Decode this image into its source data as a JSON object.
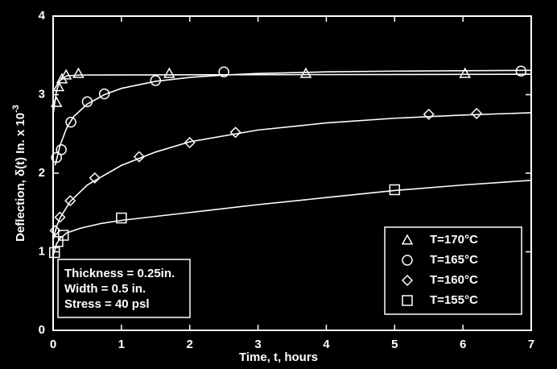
{
  "chart_data": {
    "type": "scatter",
    "x_label": "Time, t, hours",
    "y_label": "Deflection, δ(t) In. x 10",
    "y_label_sup": "-3",
    "xlim": [
      0,
      7
    ],
    "ylim": [
      0,
      4
    ],
    "xticks": [
      0,
      1,
      2,
      3,
      4,
      5,
      6,
      7
    ],
    "yticks": [
      0,
      1,
      2,
      3,
      4
    ],
    "legend": "lower right",
    "background": "#000000",
    "color": "#ffffff",
    "series": [
      {
        "name": "T=170°C",
        "marker": "triangle",
        "color": "#ffffff",
        "x": [
          0.05,
          0.08,
          0.13,
          0.19,
          0.37,
          1.7,
          3.7,
          6.03
        ],
        "values": [
          2.9,
          3.1,
          3.2,
          3.25,
          3.27,
          3.27,
          3.27,
          3.27
        ],
        "fit": {
          "x": [
            0,
            0.05,
            0.1,
            0.2,
            0.4,
            7
          ],
          "values": [
            2.75,
            3.05,
            3.18,
            3.24,
            3.25,
            3.26
          ]
        }
      },
      {
        "name": "T=165°C",
        "marker": "circle",
        "color": "#ffffff",
        "x": [
          0.05,
          0.12,
          0.26,
          0.5,
          0.75,
          1.5,
          2.5,
          6.85
        ],
        "values": [
          2.2,
          2.3,
          2.65,
          2.91,
          3.01,
          3.18,
          3.29,
          3.3
        ],
        "fit": {
          "x": [
            0.03,
            0.1,
            0.2,
            0.3,
            0.5,
            0.75,
            1,
            1.5,
            2,
            2.5,
            3,
            4,
            5,
            7
          ],
          "values": [
            2.1,
            2.35,
            2.58,
            2.72,
            2.88,
            3.0,
            3.08,
            3.17,
            3.22,
            3.25,
            3.27,
            3.29,
            3.3,
            3.31
          ]
        }
      },
      {
        "name": "T=160°C",
        "marker": "diamond",
        "color": "#ffffff",
        "x": [
          0.03,
          0.1,
          0.25,
          0.61,
          1.26,
          2.0,
          2.67,
          5.5,
          6.2
        ],
        "values": [
          1.27,
          1.44,
          1.65,
          1.94,
          2.21,
          2.39,
          2.52,
          2.75,
          2.76
        ],
        "fit": {
          "x": [
            0,
            0.05,
            0.1,
            0.25,
            0.5,
            1,
            1.5,
            2,
            3,
            4,
            5,
            6,
            7
          ],
          "values": [
            1.15,
            1.32,
            1.43,
            1.64,
            1.85,
            2.1,
            2.27,
            2.4,
            2.55,
            2.64,
            2.7,
            2.74,
            2.77
          ]
        }
      },
      {
        "name": "T=155°C",
        "marker": "square",
        "color": "#ffffff",
        "x": [
          0.02,
          0.07,
          0.15,
          1.0,
          5.0
        ],
        "values": [
          0.99,
          1.13,
          1.21,
          1.43,
          1.79
        ],
        "fit": {
          "x": [
            0,
            0.05,
            0.1,
            0.2,
            0.4,
            0.7,
            1,
            2,
            3,
            4,
            5,
            6,
            7
          ],
          "values": [
            0.95,
            1.1,
            1.17,
            1.24,
            1.3,
            1.36,
            1.4,
            1.5,
            1.6,
            1.69,
            1.78,
            1.85,
            1.91
          ]
        }
      }
    ],
    "annotation": [
      "Thickness = 0.25in.",
      "Width = 0.5 in.",
      "Stress = 40 psl"
    ]
  }
}
